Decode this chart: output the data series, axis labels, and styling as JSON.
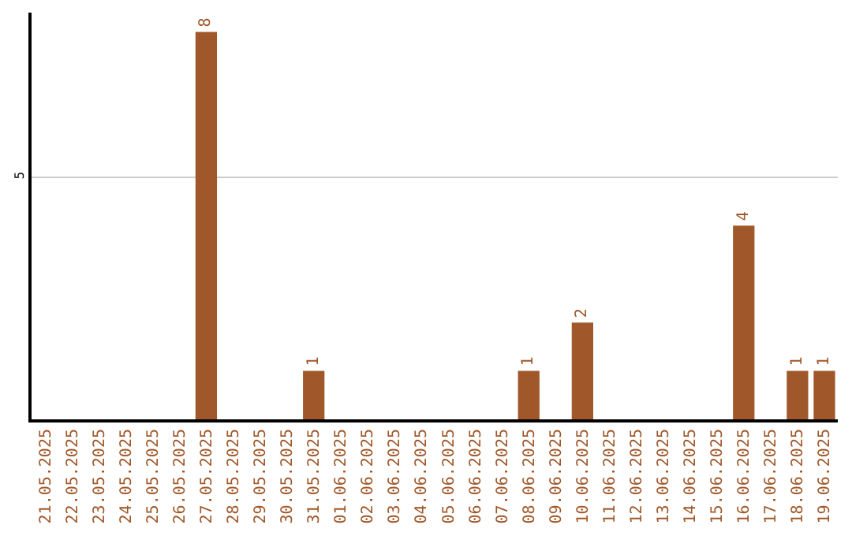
{
  "chart_data": {
    "type": "bar",
    "categories": [
      "21.05.2025",
      "22.05.2025",
      "23.05.2025",
      "24.05.2025",
      "25.05.2025",
      "26.05.2025",
      "27.05.2025",
      "28.05.2025",
      "29.05.2025",
      "30.05.2025",
      "31.05.2025",
      "01.06.2025",
      "02.06.2025",
      "03.06.2025",
      "04.06.2025",
      "05.06.2025",
      "06.06.2025",
      "07.06.2025",
      "08.06.2025",
      "09.06.2025",
      "10.06.2025",
      "11.06.2025",
      "12.06.2025",
      "13.06.2025",
      "14.06.2025",
      "15.06.2025",
      "16.06.2025",
      "17.06.2025",
      "18.06.2025",
      "19.06.2025"
    ],
    "values": [
      0,
      0,
      0,
      0,
      0,
      0,
      8,
      0,
      0,
      0,
      1,
      0,
      0,
      0,
      0,
      0,
      0,
      0,
      1,
      0,
      2,
      0,
      0,
      0,
      0,
      0,
      4,
      0,
      1,
      1
    ],
    "value_labels": [
      null,
      null,
      null,
      null,
      null,
      null,
      "8",
      null,
      null,
      null,
      "1",
      null,
      null,
      null,
      null,
      null,
      null,
      null,
      "1",
      null,
      "2",
      null,
      null,
      null,
      null,
      null,
      "4",
      null,
      "1",
      "1"
    ],
    "color": "#a0582a",
    "ylim": [
      0,
      8.4
    ],
    "yticks": [
      5
    ],
    "grid": "y"
  }
}
